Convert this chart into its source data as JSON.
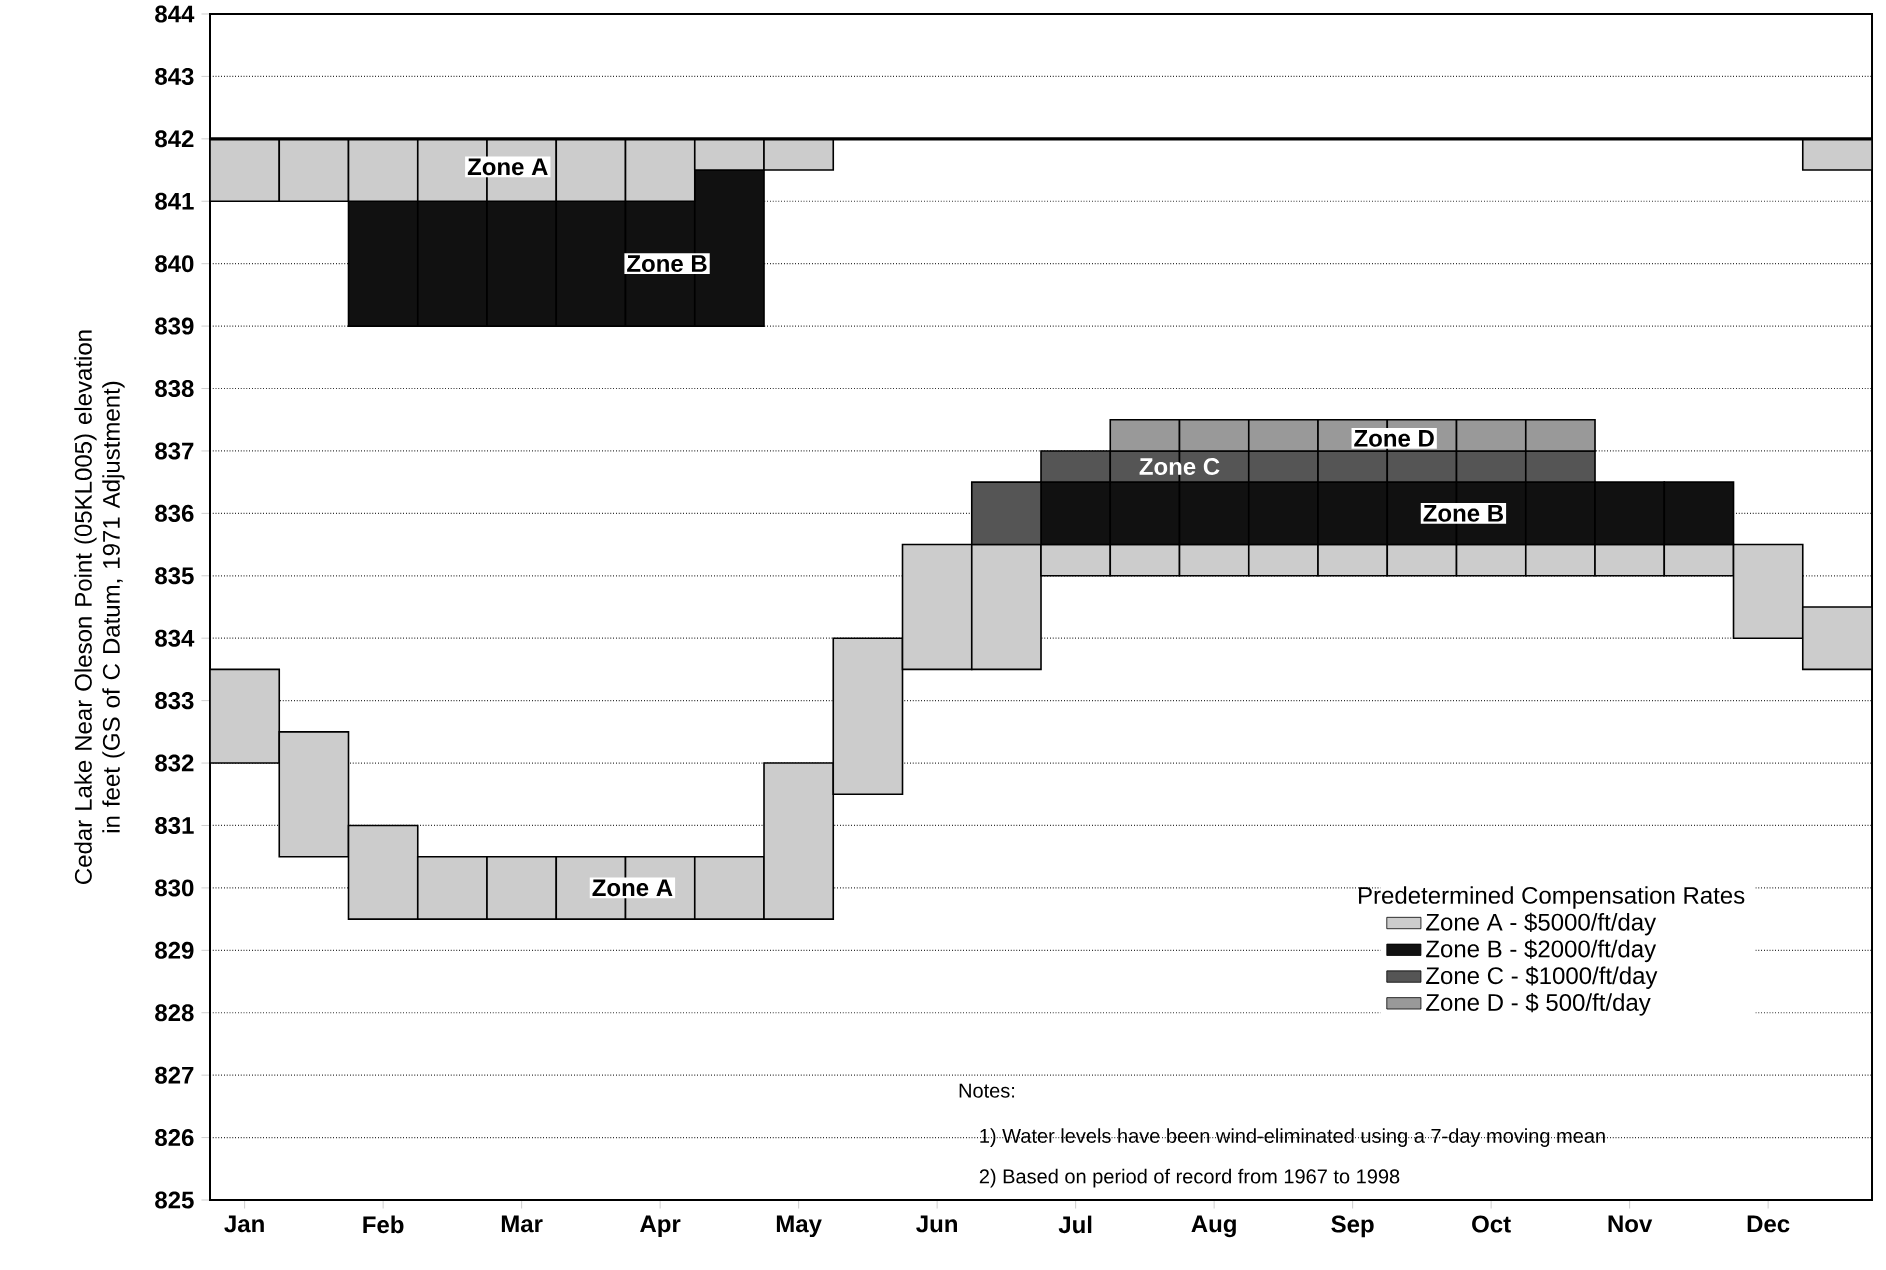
{
  "chart_data": {
    "type": "bar",
    "ylabel": "Cedar Lake Near Oleson Point (05KL005) elevation in feet (GS of C Datum, 1971 Adjustment)",
    "legend_title": "Predetermined Compensation Rates",
    "categories": [
      "Jan",
      null,
      "Feb",
      null,
      "Mar",
      null,
      "Apr",
      null,
      "May",
      null,
      "Jun",
      null,
      "Jul",
      null,
      "Aug",
      null,
      "Sep",
      null,
      "Oct",
      null,
      "Nov",
      null,
      "Dec",
      null
    ],
    "series": [
      {
        "name": "Zone A - $5000/ft/day",
        "color": "#cccccc",
        "base": [
          832,
          830.5,
          829.5,
          829.5,
          829.5,
          829.5,
          829.5,
          829.5,
          829.5,
          831.5,
          833.5,
          833.5,
          835,
          835,
          835,
          835,
          835,
          835,
          835,
          835,
          835,
          835,
          834,
          833.5
        ],
        "values": [
          1.5,
          2,
          1.5,
          1,
          1,
          1,
          1,
          1,
          2.5,
          2.5,
          2,
          2,
          0.5,
          0.5,
          0.5,
          0.5,
          0.5,
          0.5,
          0.5,
          0.5,
          0.5,
          0.5,
          1.5,
          1
        ]
      },
      {
        "name": "Zone B - $2000/ft/day",
        "color": "#111111",
        "base": [
          null,
          null,
          839,
          839,
          839,
          839,
          839,
          839,
          null,
          null,
          null,
          null,
          835.5,
          835.5,
          835.5,
          835.5,
          835.5,
          835.5,
          835.5,
          835.5,
          835.5,
          835.5,
          null,
          null
        ],
        "values": [
          null,
          null,
          2,
          2,
          2,
          2,
          2,
          2.5,
          null,
          null,
          null,
          null,
          1,
          1,
          1,
          1,
          1,
          1,
          1,
          1,
          1,
          1,
          null,
          null
        ]
      },
      {
        "name": "Zone C - $1000/ft/day",
        "color": "#555555",
        "base": [
          null,
          null,
          null,
          null,
          null,
          null,
          null,
          null,
          null,
          null,
          null,
          835.5,
          836.5,
          836.5,
          836.5,
          836.5,
          836.5,
          836.5,
          836.5,
          836.5,
          null,
          null,
          null,
          null
        ],
        "values": [
          null,
          null,
          null,
          null,
          null,
          null,
          null,
          null,
          null,
          null,
          null,
          1,
          0.5,
          0.5,
          0.5,
          0.5,
          0.5,
          0.5,
          0.5,
          0.5,
          null,
          null,
          null,
          null
        ]
      },
      {
        "name": "Zone D - $  500/ft/day",
        "color": "#999999",
        "base": [
          null,
          null,
          null,
          null,
          null,
          null,
          null,
          null,
          null,
          null,
          null,
          null,
          null,
          837,
          837,
          837,
          837,
          837,
          837,
          837,
          null,
          null,
          null,
          null
        ],
        "values": [
          null,
          null,
          null,
          null,
          null,
          null,
          null,
          null,
          null,
          null,
          null,
          null,
          null,
          0.5,
          0.5,
          0.5,
          0.5,
          0.5,
          0.5,
          0.5,
          null,
          null,
          null,
          null
        ]
      },
      {
        "color": "#cccccc",
        "base": [
          841,
          841,
          841,
          841,
          841,
          841,
          841,
          841.5,
          841.5,
          null,
          null,
          null,
          null,
          null,
          null,
          null,
          null,
          null,
          null,
          null,
          null,
          null,
          null,
          841.5
        ],
        "values": [
          1,
          1,
          1,
          1,
          1,
          1,
          1,
          0.5,
          0.5,
          null,
          null,
          null,
          null,
          null,
          null,
          null,
          null,
          null,
          null,
          null,
          null,
          null,
          null,
          0.5
        ]
      }
    ],
    "ref_lines": [
      {
        "axis": "y",
        "value": 842
      }
    ],
    "annotations": [
      "Zone A",
      "Zone B",
      "Zone D",
      "Zone C",
      "Zone B",
      "Zone A",
      "Notes:",
      "1) Water levels have been wind-eliminated using a 7-day moving mean",
      "2) Based on period of record from 1967 to 1998"
    ],
    "ylim": [
      825,
      844
    ],
    "yticks": [
      825,
      826,
      827,
      828,
      829,
      830,
      831,
      832,
      833,
      834,
      835,
      836,
      837,
      838,
      839,
      840,
      841,
      842,
      843,
      844
    ],
    "grid": "y",
    "legend": "bottom right"
  }
}
